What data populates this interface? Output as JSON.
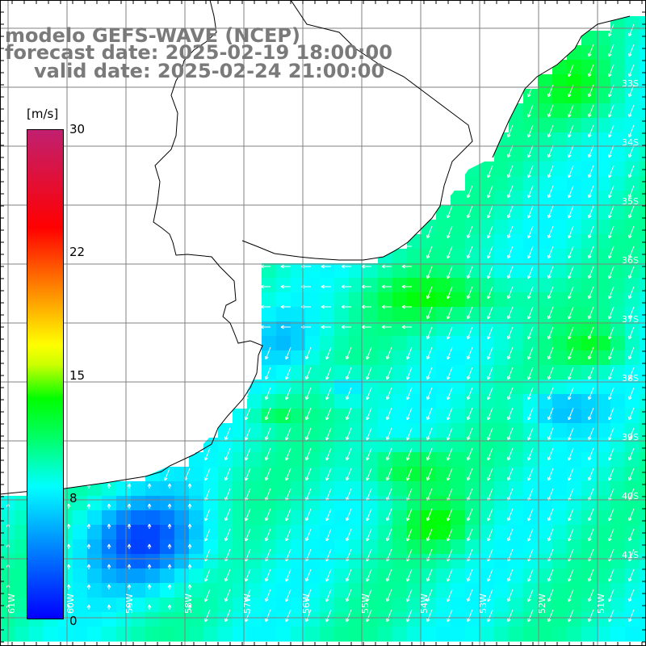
{
  "title": {
    "model": "modelo GEFS-WAVE (NCEP)",
    "forecast": "forecast date: 2025-02-19 18:00:00",
    "valid": "valid date: 2025-02-24 21:00:00"
  },
  "colorbar": {
    "unit": "[m/s]",
    "ticks": [
      "30",
      "22",
      "15",
      "8",
      "0"
    ],
    "tick_values": [
      30,
      22,
      15,
      8,
      0
    ],
    "range": [
      0,
      30
    ],
    "colors": [
      "#0000ff",
      "#0080ff",
      "#00ffff",
      "#00ff66",
      "#00ff00",
      "#ffff00",
      "#ff8000",
      "#ff0000",
      "#c02070"
    ]
  },
  "map": {
    "lat_labels": [
      "33S",
      "34S",
      "35S",
      "36S",
      "37S",
      "38S",
      "39S",
      "40S",
      "41S"
    ],
    "lon_labels": [
      "61W",
      "60W",
      "59W",
      "58W",
      "57W",
      "56W",
      "55W",
      "54W",
      "53W",
      "52W",
      "51W"
    ],
    "land_color": "#ffffff",
    "coast_color": "#000000",
    "grid_color": "#808080",
    "arrow_color": "#ffffff"
  }
}
